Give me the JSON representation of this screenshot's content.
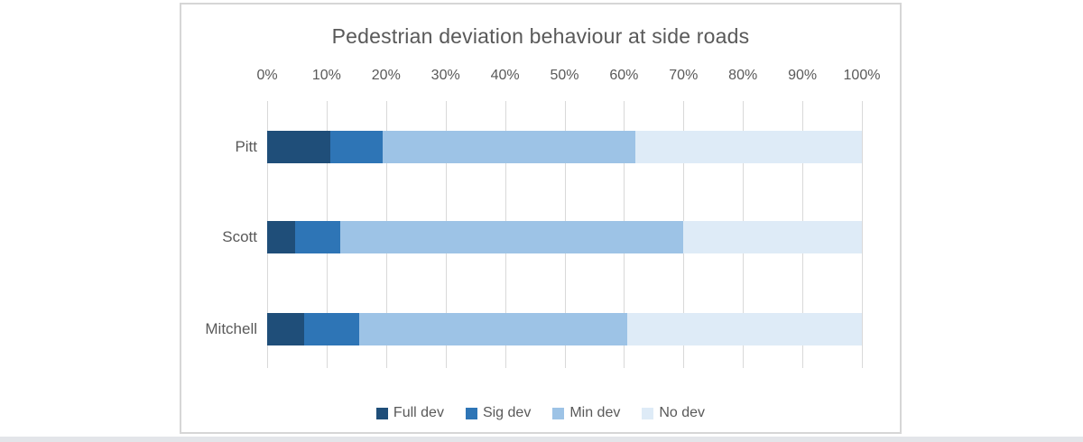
{
  "chart_data": {
    "type": "bar",
    "orientation": "horizontal",
    "stacked": true,
    "title": "Pedestrian deviation behaviour at side roads",
    "categories": [
      "Pitt",
      "Scott",
      "Mitchell"
    ],
    "series": [
      {
        "name": "Full dev",
        "color": "#1F4E79",
        "values": [
          10.6,
          4.7,
          6.2
        ]
      },
      {
        "name": "Sig dev",
        "color": "#2E75B6",
        "values": [
          8.9,
          7.6,
          9.3
        ]
      },
      {
        "name": "Min dev",
        "color": "#9DC3E6",
        "values": [
          42.4,
          57.7,
          45.0
        ]
      },
      {
        "name": "No dev",
        "color": "#DEEBF7",
        "values": [
          38.1,
          30.0,
          39.5
        ]
      }
    ],
    "x_axis": {
      "position": "top",
      "min": 0,
      "max": 100,
      "tick_labels": [
        "0%",
        "10%",
        "20%",
        "30%",
        "40%",
        "50%",
        "60%",
        "70%",
        "80%",
        "90%",
        "100%"
      ]
    },
    "legend": {
      "position": "bottom",
      "entries": [
        "Full dev",
        "Sig dev",
        "Min dev",
        "No dev"
      ]
    },
    "grid": true,
    "colors": {
      "text": "#595959",
      "gridline": "#d9d9d9",
      "panel_border": "#d6d6d6"
    }
  }
}
